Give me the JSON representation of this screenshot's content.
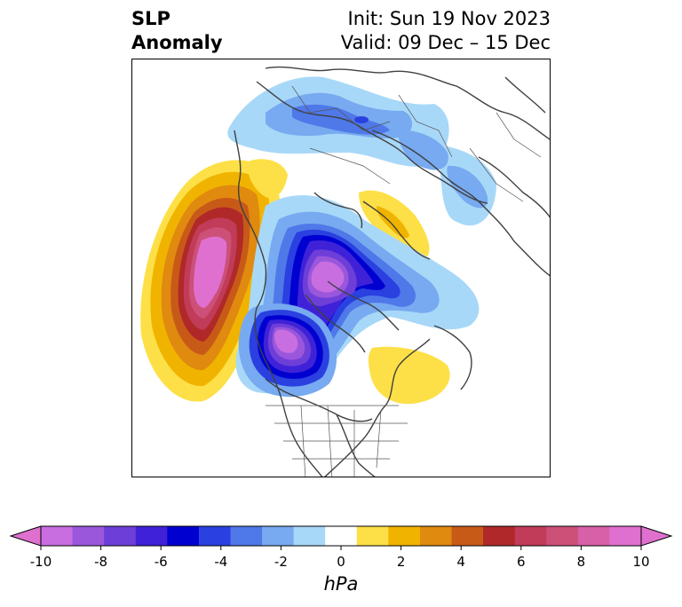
{
  "title": {
    "left_line1": "SLP",
    "left_line2": "Anomaly",
    "right_line1": "Init: Sun 19 Nov 2023",
    "right_line2": "Valid: 09 Dec – 15 Dec"
  },
  "colorbar": {
    "label": "hPa",
    "ticks": [
      "-10",
      "-8",
      "-6",
      "-4",
      "-2",
      "0",
      "2",
      "4",
      "6",
      "8",
      "10"
    ],
    "levels": [
      -10,
      -9,
      -8,
      -7,
      -6,
      -5,
      -4,
      -3,
      -2,
      -1,
      1,
      2,
      3,
      4,
      5,
      6,
      7,
      8,
      9,
      10
    ],
    "colors": [
      "#c86ee0",
      "#9a57dc",
      "#6e3fd8",
      "#3f22d8",
      "#0000d0",
      "#2a40e0",
      "#4f78e8",
      "#77aaf0",
      "#a8d8f8",
      "#ffffff",
      "#fde047",
      "#f0b400",
      "#e08a10",
      "#c85a18",
      "#b02828",
      "#c03c58",
      "#cc5078",
      "#d860a8",
      "#e070d0"
    ],
    "extend": "both"
  },
  "map": {
    "projection": "north-polar-stereographic",
    "features": [
      {
        "name": "positive-anomaly-north-pacific",
        "peak_hpa": 10
      },
      {
        "name": "negative-anomaly-arctic",
        "peak_hpa": -10
      },
      {
        "name": "negative-anomaly-western-canada",
        "peak_hpa": -10
      },
      {
        "name": "negative-anomaly-siberia",
        "peak_hpa": -6
      },
      {
        "name": "positive-anomaly-hudson-bay-east",
        "peak_hpa": 2
      },
      {
        "name": "positive-anomaly-east-siberian-sea",
        "peak_hpa": 2
      }
    ]
  }
}
